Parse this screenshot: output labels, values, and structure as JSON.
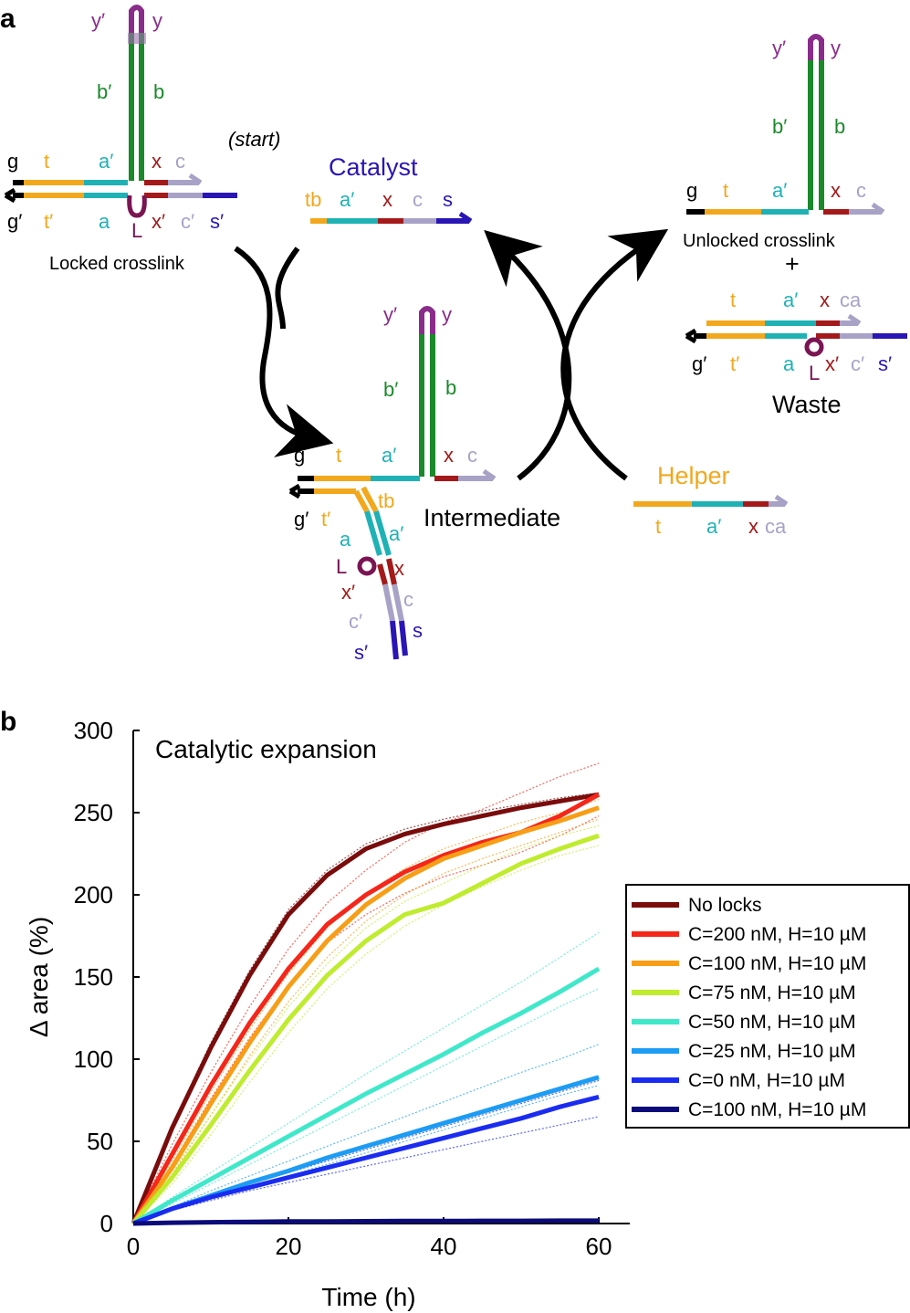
{
  "colors": {
    "black": "#000000",
    "orange": "#f2a81d",
    "cyan": "#1fb2b5",
    "red": "#a41a1a",
    "lav": "#a7a2c6",
    "blue": "#2a15b5",
    "green": "#1a8a2a",
    "purple": "#8a2c8a",
    "loop": "#7a1452"
  },
  "panel_a": {
    "panel_label": "a",
    "start_label": "(start)",
    "catalyst": {
      "title": "Catalyst",
      "tb": "tb",
      "a_p": "a′",
      "x": "x",
      "c": "c",
      "s": "s"
    },
    "locked": {
      "caption": "Locked crosslink",
      "y_p": "y′",
      "y": "y",
      "b_p": "b′",
      "b": "b",
      "g": "g",
      "t": "t",
      "a_p": "a′",
      "x": "x",
      "c": "c",
      "g_p": "g′",
      "t_p": "t′",
      "a": "a",
      "L": "L",
      "x_p": "x′",
      "c_p": "c′",
      "s_p": "s′"
    },
    "unlocked": {
      "caption": "Unlocked crosslink",
      "y_p": "y′",
      "y": "y",
      "b_p": "b′",
      "b": "b",
      "g": "g",
      "t": "t",
      "a_p": "a′",
      "x": "x",
      "c": "c"
    },
    "plus": "+",
    "waste": {
      "caption": "Waste",
      "t": "t",
      "a_p": "a′",
      "x": "x",
      "ca": "ca",
      "g_p": "g′",
      "t_p": "t′",
      "a": "a",
      "L": "L",
      "x_p": "x′",
      "c_p": "c′",
      "s_p": "s′"
    },
    "intermediate": {
      "caption": "Intermediate",
      "y_p": "y′",
      "y": "y",
      "b_p": "b′",
      "b": "b",
      "g": "g",
      "t": "t",
      "a_p": "a′",
      "x": "x",
      "c": "c",
      "g_p": "g′",
      "t_p": "t′",
      "tb": "tb",
      "a": "a",
      "a_p2": "a′",
      "L": "L",
      "x2": "x",
      "x_p": "x′",
      "c2": "c",
      "c_p": "c′",
      "s": "s",
      "s_p": "s′"
    },
    "helper": {
      "title": "Helper",
      "t": "t",
      "a_p": "a′",
      "x": "x",
      "ca": "ca"
    }
  },
  "panel_b": {
    "panel_label": "b"
  },
  "chart_data": {
    "type": "line",
    "title": "Catalytic expansion",
    "xlabel": "Time (h)",
    "ylabel": "Δ area (%)",
    "xlim": [
      0,
      64
    ],
    "ylim": [
      0,
      300
    ],
    "xticks": [
      0,
      20,
      40,
      60
    ],
    "yticks": [
      0,
      50,
      100,
      150,
      200,
      250,
      300
    ],
    "legend_position": "center-right",
    "x": [
      0,
      5,
      10,
      15,
      20,
      25,
      30,
      35,
      40,
      45,
      50,
      55,
      60
    ],
    "series": [
      {
        "name": "No locks",
        "color": "#7a0c0c",
        "values": [
          0,
          58,
          107,
          151,
          188,
          212,
          228,
          237,
          243,
          248,
          253,
          257,
          261
        ],
        "replicates": [
          [
            0,
            60,
            110,
            154,
            191,
            215,
            231,
            240,
            246,
            251,
            255,
            259,
            262
          ]
        ]
      },
      {
        "name": "C=200 nM, H=10 µM",
        "color": "#f5261a",
        "values": [
          0,
          42,
          84,
          122,
          155,
          182,
          200,
          214,
          224,
          232,
          238,
          248,
          261
        ],
        "replicates": [
          [
            0,
            48,
            92,
            132,
            167,
            195,
            215,
            232,
            244,
            252,
            262,
            272,
            280
          ],
          [
            0,
            36,
            76,
            113,
            145,
            171,
            188,
            201,
            211,
            218,
            226,
            236,
            248
          ]
        ]
      },
      {
        "name": "C=100 nM, H=10 µM",
        "color": "#f79e16",
        "values": [
          0,
          34,
          73,
          110,
          144,
          172,
          194,
          210,
          222,
          230,
          238,
          245,
          253
        ],
        "replicates": [
          [
            0,
            38,
            80,
            118,
            152,
            180,
            201,
            216,
            228,
            236,
            244,
            250,
            258
          ],
          [
            0,
            30,
            66,
            102,
            135,
            162,
            184,
            200,
            213,
            222,
            230,
            238,
            246
          ]
        ]
      },
      {
        "name": "C=75 nM, H=10 µM",
        "color": "#bfec2e",
        "values": [
          0,
          28,
          60,
          93,
          124,
          151,
          172,
          188,
          195,
          207,
          219,
          228,
          236
        ],
        "replicates": [
          [
            0,
            32,
            66,
            100,
            132,
            158,
            180,
            196,
            207,
            218,
            228,
            236,
            242
          ],
          [
            0,
            24,
            54,
            86,
            116,
            143,
            164,
            181,
            194,
            205,
            215,
            224,
            230
          ]
        ]
      },
      {
        "name": "C=50 nM, H=10 µM",
        "color": "#3fe8c9",
        "values": [
          0,
          14,
          27,
          40,
          53,
          66,
          79,
          91,
          103,
          116,
          128,
          141,
          155
        ],
        "replicates": [
          [
            0,
            16,
            31,
            46,
            61,
            76,
            91,
            105,
            119,
            133,
            147,
            162,
            177
          ],
          [
            0,
            12,
            24,
            36,
            48,
            60,
            72,
            84,
            96,
            108,
            120,
            132,
            143
          ]
        ]
      },
      {
        "name": "C=25 nM, H=10 µM",
        "color": "#1c9cf3",
        "values": [
          0,
          9,
          17,
          25,
          32,
          40,
          47,
          54,
          61,
          68,
          75,
          82,
          89
        ],
        "replicates": [
          [
            0,
            10,
            20,
            29,
            38,
            47,
            56,
            65,
            74,
            83,
            92,
            100,
            109
          ],
          [
            0,
            8,
            15,
            22,
            29,
            36,
            43,
            50,
            57,
            64,
            71,
            78,
            84
          ]
        ]
      },
      {
        "name": "C=0 nM, H=10 µM",
        "color": "#1a2cf0",
        "values": [
          0,
          9,
          16,
          22,
          28,
          34,
          40,
          46,
          52,
          58,
          64,
          71,
          77
        ],
        "replicates": [
          [
            0,
            8,
            14,
            20,
            25,
            30,
            35,
            40,
            45,
            50,
            55,
            60,
            65
          ],
          [
            0,
            9,
            17,
            24,
            31,
            38,
            45,
            52,
            59,
            66,
            73,
            80,
            87
          ]
        ]
      },
      {
        "name": "C=100 nM, H=10 µM",
        "color": "#0b0b7a",
        "values": [
          0,
          0.5,
          0.8,
          1,
          1.2,
          1.3,
          1.4,
          1.5,
          1.5,
          1.6,
          1.6,
          1.7,
          1.7
        ],
        "replicates": []
      }
    ]
  }
}
